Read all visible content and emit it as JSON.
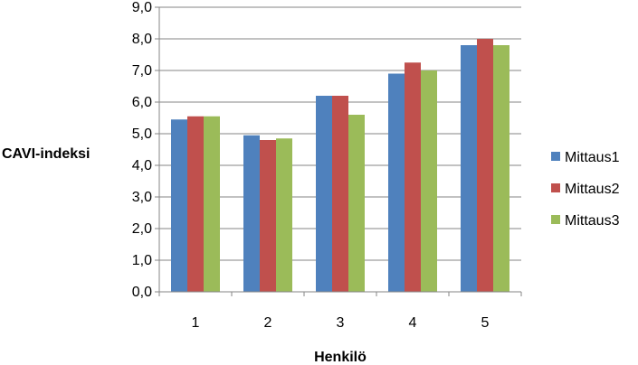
{
  "chart_data": {
    "type": "bar",
    "title": "",
    "xlabel": "Henkilö",
    "ylabel": "CAVI-indeksi",
    "categories": [
      "1",
      "2",
      "3",
      "4",
      "5"
    ],
    "series": [
      {
        "name": "Mittaus1",
        "color": "#4F81BD",
        "values": [
          5.45,
          4.95,
          6.2,
          6.9,
          7.8
        ]
      },
      {
        "name": "Mittaus2",
        "color": "#C0504D",
        "values": [
          5.55,
          4.8,
          6.2,
          7.25,
          8.0
        ]
      },
      {
        "name": "Mittaus3",
        "color": "#9BBB59",
        "values": [
          5.55,
          4.85,
          5.6,
          7.0,
          7.8
        ]
      }
    ],
    "ylim": [
      0,
      9
    ],
    "yticks": [
      "0,0",
      "1,0",
      "2,0",
      "3,0",
      "4,0",
      "5,0",
      "6,0",
      "7,0",
      "8,0",
      "9,0"
    ],
    "grid": true,
    "legend_position": "right"
  }
}
